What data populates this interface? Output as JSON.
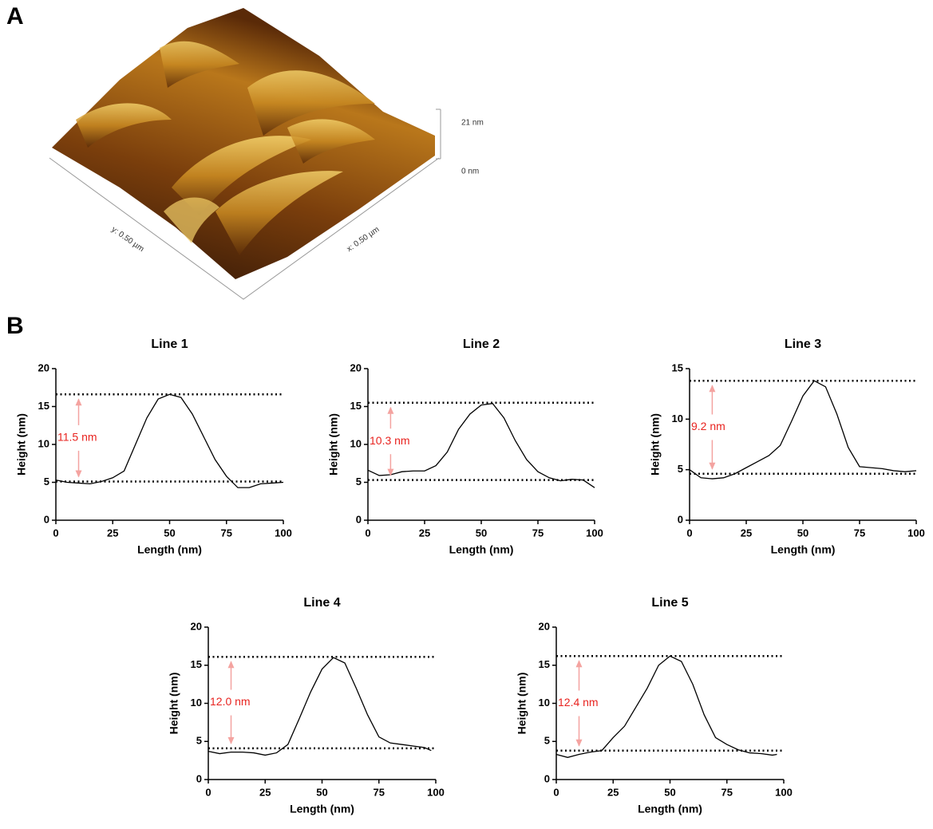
{
  "panel_a": {
    "label": "A",
    "z_max_label": "21 nm",
    "z_min_label": "0 nm",
    "y_axis_label": "y: 0.50 µm",
    "x_axis_label": "x: 0.50 µm"
  },
  "panel_b": {
    "label": "B"
  },
  "chart_data": [
    {
      "type": "line",
      "title": "Line 1",
      "xlabel": "Length (nm)",
      "ylabel": "Height (nm)",
      "color": "#000000",
      "x": [
        0,
        5,
        10,
        15,
        20,
        25,
        30,
        35,
        40,
        45,
        50,
        55,
        60,
        65,
        70,
        75,
        80,
        85,
        90,
        95,
        100
      ],
      "values": [
        5.3,
        5.0,
        4.9,
        4.8,
        5.1,
        5.6,
        6.5,
        10,
        13.5,
        16,
        16.6,
        16.2,
        14,
        11,
        8,
        5.8,
        4.3,
        4.3,
        4.8,
        4.9,
        5.0
      ],
      "xlim": [
        0,
        100
      ],
      "ylim": [
        0,
        20
      ],
      "xticks": [
        0,
        25,
        50,
        75,
        100
      ],
      "yticks": [
        0,
        5,
        10,
        15,
        20
      ],
      "reference_lines": [
        16.6,
        5.1
      ],
      "annotation": "11.5 nm"
    },
    {
      "type": "line",
      "title": "Line 2",
      "xlabel": "Length (nm)",
      "ylabel": "Height (nm)",
      "color": "#000000",
      "x": [
        0,
        5,
        10,
        15,
        20,
        25,
        30,
        35,
        40,
        45,
        50,
        55,
        60,
        65,
        70,
        75,
        80,
        85,
        90,
        95,
        100
      ],
      "values": [
        6.6,
        5.9,
        6.0,
        6.4,
        6.5,
        6.5,
        7.2,
        9,
        12,
        14,
        15.2,
        15.4,
        13.5,
        10.5,
        8,
        6.4,
        5.6,
        5.2,
        5.4,
        5.3,
        4.3
      ],
      "xlim": [
        0,
        100
      ],
      "ylim": [
        0,
        20
      ],
      "xticks": [
        0,
        25,
        50,
        75,
        100
      ],
      "yticks": [
        0,
        5,
        10,
        15,
        20
      ],
      "reference_lines": [
        15.5,
        5.3
      ],
      "annotation": "10.3 nm"
    },
    {
      "type": "line",
      "title": "Line 3",
      "xlabel": "Length (nm)",
      "ylabel": "Height (nm)",
      "color": "#000000",
      "x": [
        0,
        5,
        10,
        15,
        20,
        25,
        30,
        35,
        40,
        45,
        50,
        55,
        60,
        65,
        70,
        75,
        80,
        85,
        90,
        95,
        100
      ],
      "values": [
        5.0,
        4.2,
        4.1,
        4.2,
        4.6,
        5.2,
        5.8,
        6.4,
        7.4,
        9.8,
        12.3,
        13.8,
        13.2,
        10.5,
        7.2,
        5.3,
        5.2,
        5.1,
        4.9,
        4.8,
        4.9
      ],
      "xlim": [
        0,
        100
      ],
      "ylim": [
        0,
        15
      ],
      "xticks": [
        0,
        25,
        50,
        75,
        100
      ],
      "yticks": [
        0,
        5,
        10,
        15
      ],
      "reference_lines": [
        13.8,
        4.6
      ],
      "annotation": "9.2 nm"
    },
    {
      "type": "line",
      "title": "Line 4",
      "xlabel": "Length (nm)",
      "ylabel": "Height (nm)",
      "color": "#000000",
      "x": [
        0,
        5,
        10,
        15,
        20,
        25,
        30,
        35,
        40,
        45,
        50,
        55,
        60,
        65,
        70,
        75,
        80,
        85,
        90,
        95,
        98
      ],
      "values": [
        3.7,
        3.4,
        3.6,
        3.6,
        3.5,
        3.2,
        3.5,
        4.6,
        8,
        11.5,
        14.5,
        16,
        15.3,
        12,
        8.5,
        5.6,
        4.8,
        4.6,
        4.4,
        4.2,
        3.8
      ],
      "xlim": [
        0,
        100
      ],
      "ylim": [
        0,
        20
      ],
      "xticks": [
        0,
        25,
        50,
        75,
        100
      ],
      "yticks": [
        0,
        5,
        10,
        15,
        20
      ],
      "reference_lines": [
        16.1,
        4.1
      ],
      "annotation": "12.0 nm"
    },
    {
      "type": "line",
      "title": "Line 5",
      "xlabel": "Length (nm)",
      "ylabel": "Height (nm)",
      "color": "#000000",
      "x": [
        0,
        5,
        10,
        15,
        20,
        25,
        30,
        35,
        40,
        45,
        50,
        55,
        60,
        65,
        70,
        75,
        80,
        85,
        90,
        95,
        97
      ],
      "values": [
        3.3,
        2.9,
        3.3,
        3.6,
        3.8,
        5.5,
        7,
        9.5,
        12,
        15,
        16.2,
        15.5,
        12.5,
        8.5,
        5.5,
        4.6,
        3.9,
        3.5,
        3.4,
        3.2,
        3.3
      ],
      "xlim": [
        0,
        100
      ],
      "ylim": [
        0,
        20
      ],
      "xticks": [
        0,
        25,
        50,
        75,
        100
      ],
      "yticks": [
        0,
        5,
        10,
        15,
        20
      ],
      "reference_lines": [
        16.2,
        3.8
      ],
      "annotation": "12.4 nm"
    }
  ]
}
